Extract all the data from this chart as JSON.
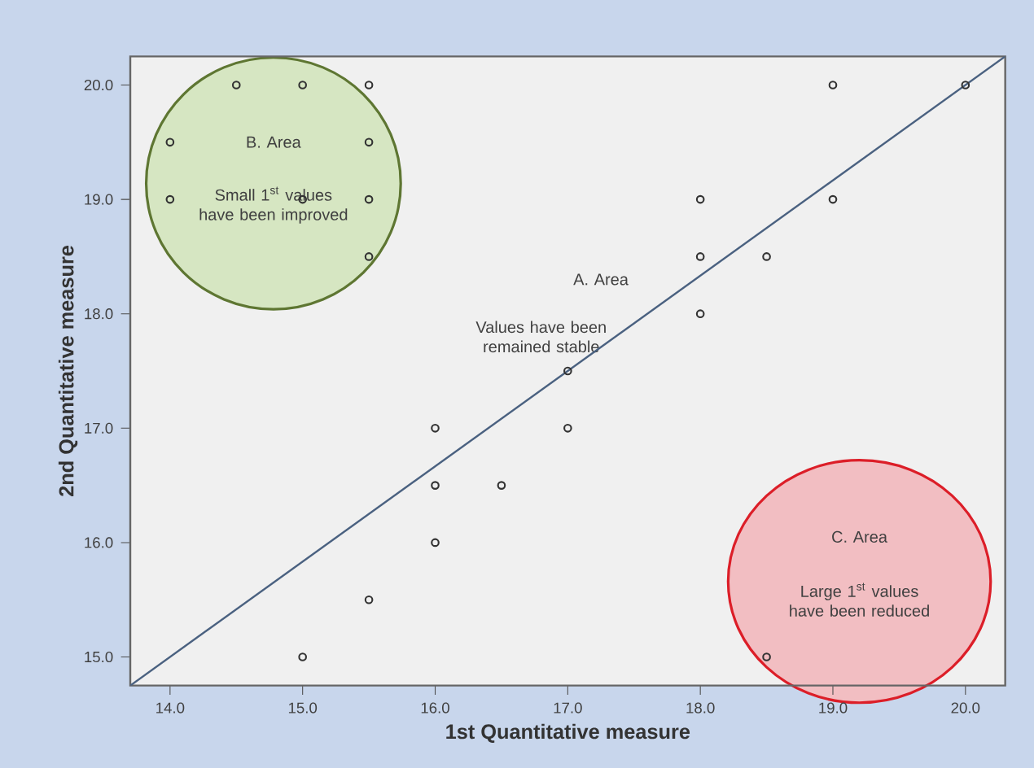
{
  "chart_data": {
    "type": "scatter",
    "xlabel": "1st Quantitative measure",
    "ylabel": "2nd Quantitative measure",
    "xlim": [
      13.7,
      20.3
    ],
    "ylim": [
      14.75,
      20.25
    ],
    "xticks": [
      {
        "value": 14,
        "label": "14.0"
      },
      {
        "value": 15,
        "label": "15.0"
      },
      {
        "value": 16,
        "label": "16.0"
      },
      {
        "value": 17,
        "label": "17.0"
      },
      {
        "value": 18,
        "label": "18.0"
      },
      {
        "value": 19,
        "label": "19.0"
      },
      {
        "value": 20,
        "label": "20.0"
      }
    ],
    "yticks": [
      {
        "value": 15,
        "label": "15.0"
      },
      {
        "value": 16,
        "label": "16.0"
      },
      {
        "value": 17,
        "label": "17.0"
      },
      {
        "value": 18,
        "label": "18.0"
      },
      {
        "value": 19,
        "label": "19.0"
      },
      {
        "value": 20,
        "label": "20.0"
      }
    ],
    "series": [
      {
        "color": "#333333",
        "marker": "circle",
        "x": [
          14.5,
          15,
          15.5,
          14,
          15.5,
          14,
          15,
          15.5,
          15.5,
          19,
          20,
          18,
          19,
          18,
          18.5,
          18,
          17,
          17,
          16,
          16,
          16.5,
          16,
          15.5,
          15,
          18.5
        ],
        "values": [
          20,
          20,
          20,
          19.5,
          19.5,
          19,
          19,
          19,
          18.5,
          20,
          20,
          19,
          19,
          18.5,
          18.5,
          18,
          17.5,
          17,
          17,
          16.5,
          16.5,
          16,
          15.5,
          15,
          15
        ]
      },
      {
        "type": "line",
        "color": "#4a6180",
        "marker": "none",
        "x": [
          13.7,
          20.3
        ],
        "values": [
          14.75,
          20.25
        ]
      }
    ],
    "annotations": [
      "B. Area",
      "Small 1$^{st}$ values have been improved",
      "A. Area",
      "Values have been remained stable",
      "C. Area",
      "Large 1$^{st}$ values have been reduced"
    ]
  }
}
